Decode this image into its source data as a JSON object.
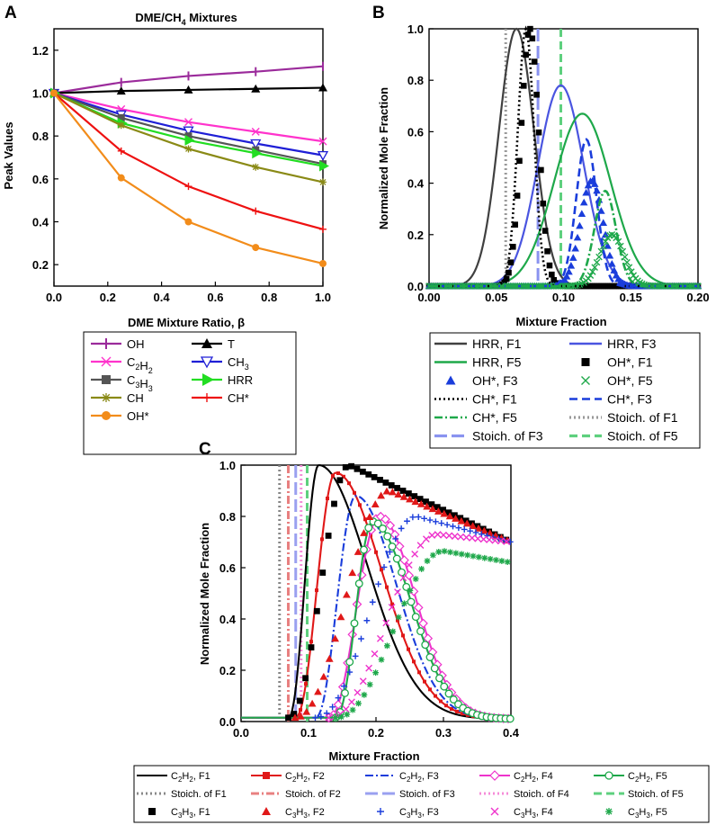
{
  "chart_data": [
    {
      "panel": "A",
      "type": "line",
      "title": "DME/CH",
      "title_sub": "4",
      "title_tail": " Mixtures",
      "xlabel": "DME Mixture Ratio, β",
      "ylabel": "Peak Values",
      "xlim": [
        0,
        1
      ],
      "ylim": [
        0.1,
        1.3
      ],
      "xticks": [
        "0.0",
        "0.2",
        "0.4",
        "0.6",
        "0.8",
        "1.0"
      ],
      "yticks": [
        "0.2",
        "0.4",
        "0.6",
        "0.8",
        "1.0",
        "1.2"
      ],
      "x": [
        0,
        0.25,
        0.5,
        0.75,
        1.0
      ],
      "series": [
        {
          "name": "OH",
          "sub": "",
          "color": "#9b2b9b",
          "marker": "bar",
          "values": [
            1.0,
            1.05,
            1.08,
            1.1,
            1.125
          ]
        },
        {
          "name": "T",
          "sub": "",
          "color": "#000000",
          "marker": "triangle",
          "values": [
            1.0,
            1.01,
            1.015,
            1.02,
            1.025
          ]
        },
        {
          "name": "C2H2",
          "sub": "2|2",
          "color": "#ff33cc",
          "marker": "x",
          "values": [
            1.0,
            0.925,
            0.865,
            0.82,
            0.775
          ]
        },
        {
          "name": "CH3",
          "sub": "3",
          "color": "#1f1fd6",
          "marker": "triangle-open",
          "values": [
            1.0,
            0.9,
            0.825,
            0.765,
            0.71
          ]
        },
        {
          "name": "C3H3",
          "sub": "3|3",
          "color": "#555555",
          "marker": "square",
          "values": [
            1.0,
            0.885,
            0.8,
            0.735,
            0.67
          ]
        },
        {
          "name": "HRR",
          "sub": "",
          "color": "#22dd22",
          "marker": "arrow",
          "values": [
            1.0,
            0.86,
            0.78,
            0.72,
            0.66
          ]
        },
        {
          "name": "CH",
          "sub": "",
          "color": "#8a8a16",
          "marker": "asterisk",
          "values": [
            1.0,
            0.85,
            0.74,
            0.655,
            0.585
          ]
        },
        {
          "name": "CH*",
          "sub": "",
          "color": "#ee1111",
          "marker": "plus",
          "values": [
            1.0,
            0.73,
            0.565,
            0.45,
            0.365
          ]
        },
        {
          "name": "OH*",
          "sub": "",
          "color": "#f28c1a",
          "marker": "circle",
          "values": [
            1.0,
            0.605,
            0.4,
            0.28,
            0.205
          ]
        }
      ]
    },
    {
      "panel": "B",
      "type": "line",
      "xlabel": "Mixture Fraction",
      "ylabel": "Normalized Mole Fraction",
      "xlim": [
        0,
        0.2
      ],
      "ylim": [
        0,
        1
      ],
      "xticks": [
        "0.00",
        "0.05",
        "0.10",
        "0.15",
        "0.20"
      ],
      "yticks": [
        "0.0",
        "0.2",
        "0.4",
        "0.6",
        "0.8",
        "1.0"
      ],
      "series": [
        {
          "name": "HRR, F1",
          "color": "#404040",
          "style": "solid",
          "peak_x": 0.065,
          "peak_y": 1.0,
          "width": 0.013
        },
        {
          "name": "HRR, F3",
          "color": "#4a55e0",
          "style": "solid",
          "peak_x": 0.098,
          "peak_y": 0.78,
          "width": 0.017
        },
        {
          "name": "HRR, F5",
          "color": "#1ea84a",
          "style": "solid",
          "peak_x": 0.114,
          "peak_y": 0.67,
          "width": 0.021
        },
        {
          "name": "OH*, F1",
          "color": "#000000",
          "style": "square",
          "peak_x": 0.075,
          "peak_y": 1.0,
          "width": 0.0065
        },
        {
          "name": "OH*, F3",
          "color": "#1a3ddb",
          "style": "triangle",
          "peak_x": 0.121,
          "peak_y": 0.41,
          "width": 0.0085
        },
        {
          "name": "OH*, F5",
          "color": "#1ea84a",
          "style": "x",
          "peak_x": 0.136,
          "peak_y": 0.2,
          "width": 0.009
        },
        {
          "name": "CH*, F1",
          "color": "#000000",
          "style": "dotted",
          "peak_x": 0.072,
          "peak_y": 1.0,
          "width": 0.006
        },
        {
          "name": "CH*, F3",
          "color": "#1a3ddb",
          "style": "dash",
          "peak_x": 0.117,
          "peak_y": 0.57,
          "width": 0.0075
        },
        {
          "name": "CH*, F5",
          "color": "#1ea84a",
          "style": "dashdot",
          "peak_x": 0.131,
          "peak_y": 0.37,
          "width": 0.008
        }
      ],
      "stoich_lines": [
        {
          "name": "Stoich. of F1",
          "x": 0.057,
          "color": "#999999",
          "style": "dotted"
        },
        {
          "name": "Stoich. of F3",
          "x": 0.081,
          "color": "#8a93f0",
          "style": "longdash"
        },
        {
          "name": "Stoich. of F5",
          "x": 0.098,
          "color": "#5ed07e",
          "style": "dash"
        }
      ],
      "legend": [
        [
          "HRR, F1",
          "HRR, F3"
        ],
        [
          "HRR, F5",
          "OH*, F1"
        ],
        [
          "OH*, F3",
          "OH*, F5"
        ],
        [
          "CH*, F1",
          "CH*, F3"
        ],
        [
          "CH*, F5",
          "Stoich. of F1"
        ],
        [
          "Stoich. of F3",
          "Stoich. of F5"
        ]
      ]
    },
    {
      "panel": "C",
      "type": "line",
      "xlabel": "Mixture Fraction",
      "ylabel": "Normalized Mole Fraction",
      "xlim": [
        0,
        0.4
      ],
      "ylim": [
        0,
        1
      ],
      "xticks": [
        "0.0",
        "0.1",
        "0.2",
        "0.3",
        "0.4"
      ],
      "yticks": [
        "0.0",
        "0.2",
        "0.4",
        "0.6",
        "0.8",
        "1.0"
      ],
      "series": [
        {
          "name": "C2H2, F1",
          "color": "#000000",
          "style": "solid",
          "start": 0.07,
          "peak_x": 0.115,
          "peak_y": 1.0,
          "end": 0.38
        },
        {
          "name": "C2H2, F2",
          "color": "#e01818",
          "style": "solid-marker",
          "start": 0.08,
          "peak_x": 0.14,
          "peak_y": 0.97,
          "end": 0.39
        },
        {
          "name": "C2H2, F3",
          "color": "#1a3ddb",
          "style": "dashdot",
          "start": 0.11,
          "peak_x": 0.17,
          "peak_y": 0.88,
          "end": 0.39
        },
        {
          "name": "C2H2, F4",
          "color": "#ee33cc",
          "style": "diamond",
          "start": 0.13,
          "peak_x": 0.205,
          "peak_y": 0.8,
          "end": 0.4
        },
        {
          "name": "C2H2, F5",
          "color": "#1ea84a",
          "style": "circle",
          "start": 0.14,
          "peak_x": 0.195,
          "peak_y": 0.78,
          "end": 0.4
        },
        {
          "name": "C3H3, F1",
          "color": "#000000",
          "style": "square",
          "start": 0.07,
          "peak_x": 0.16,
          "peak_y": 1.0,
          "end": 0.4,
          "plateau": 0.7
        },
        {
          "name": "C3H3, F2",
          "color": "#e01818",
          "style": "triangle",
          "start": 0.08,
          "peak_x": 0.22,
          "peak_y": 0.9,
          "end": 0.4,
          "plateau": 0.7
        },
        {
          "name": "C3H3, F3",
          "color": "#1a3ddb",
          "style": "plus",
          "start": 0.11,
          "peak_x": 0.26,
          "peak_y": 0.8,
          "end": 0.4,
          "plateau": 0.7
        },
        {
          "name": "C3H3, F4",
          "color": "#ee33cc",
          "style": "x",
          "start": 0.13,
          "peak_x": 0.29,
          "peak_y": 0.73,
          "end": 0.4,
          "plateau": 0.7
        },
        {
          "name": "C3H3, F5",
          "color": "#1ea84a",
          "style": "asterisk",
          "start": 0.14,
          "peak_x": 0.3,
          "peak_y": 0.665,
          "end": 0.4,
          "plateau": 0.62
        }
      ],
      "stoich_lines": [
        {
          "name": "Stoich. of F1",
          "x": 0.057,
          "color": "#888888",
          "style": "dotted"
        },
        {
          "name": "Stoich. of F2",
          "x": 0.07,
          "color": "#e88080",
          "style": "dashdot"
        },
        {
          "name": "Stoich. of F3",
          "x": 0.081,
          "color": "#9aa0f0",
          "style": "longdash"
        },
        {
          "name": "Stoich. of F4",
          "x": 0.089,
          "color": "#f58cd8",
          "style": "dotted"
        },
        {
          "name": "Stoich. of F5",
          "x": 0.098,
          "color": "#5ed07e",
          "style": "dash"
        }
      ],
      "legend": [
        [
          "C2H2, F1",
          "C2H2, F2",
          "C2H2, F3",
          "C2H2, F4",
          "C2H2, F5"
        ],
        [
          "Stoich. of F1",
          "Stoich. of F2",
          "Stoich. of F3",
          "Stoich. of F4",
          "Stoich. of F5"
        ],
        [
          "C3H3, F1",
          "C3H3, F2",
          "C3H3, F3",
          "C3H3, F4",
          "C3H3, F5"
        ]
      ]
    }
  ],
  "panel_labels": [
    "A",
    "B",
    "C"
  ]
}
